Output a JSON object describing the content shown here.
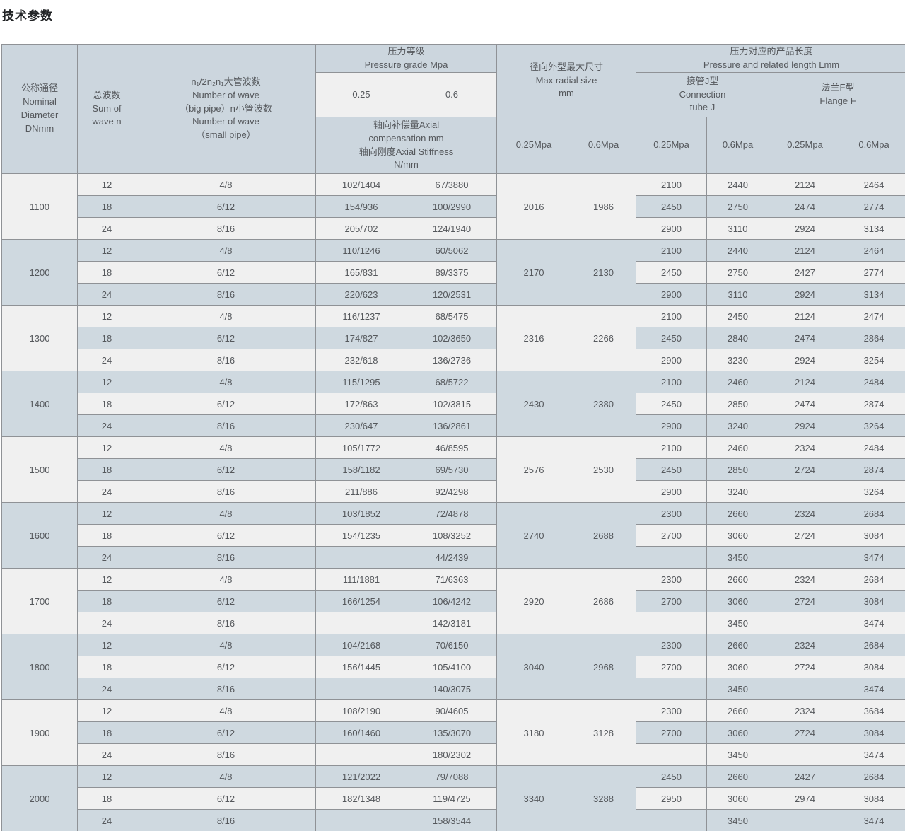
{
  "title": "技术参数",
  "table": {
    "header": {
      "nominal_diameter": "公称通径\nNominal\nDiameter\nDNmm",
      "sum_of_wave": "总波数\nSum of\nwave n",
      "wave_number": "n₁/2n₂n₁大管波数\nNumber of wave\n（big pipe）n小管波数\nNumber of wave\n（small pipe）",
      "pressure_grade": "压力等级\nPressure grade Mpa",
      "pressure_025": "0.25",
      "pressure_06": "0.6",
      "axial": "轴向补偿量Axial\ncompensation mm\n轴向刚度Axial Stiffness\nN/mm",
      "max_radial": "径向外型最大尺寸\nMax radial size\nmm",
      "radial_025": "0.25Mpa",
      "radial_06": "0.6Mpa",
      "length": "压力对应的产品长度\nPressure and related length Lmm",
      "connection_j": "接管J型\nConnection\ntube J",
      "flange_f": "法兰F型\nFlange F",
      "j_025": "0.25Mpa",
      "j_06": "0.6Mpa",
      "f_025": "0.25Mpa",
      "f_06": "0.6Mpa"
    },
    "groups": [
      {
        "dn": "1100",
        "radial_025": "2016",
        "radial_06": "1986",
        "rows": [
          {
            "waves": "12",
            "pipe_waves": "4/8",
            "comp_025": "102/1404",
            "comp_06": "67/3880",
            "j_025": "2100",
            "j_06": "2440",
            "f_025": "2124",
            "f_06": "2464"
          },
          {
            "waves": "18",
            "pipe_waves": "6/12",
            "comp_025": "154/936",
            "comp_06": "100/2990",
            "j_025": "2450",
            "j_06": "2750",
            "f_025": "2474",
            "f_06": "2774"
          },
          {
            "waves": "24",
            "pipe_waves": "8/16",
            "comp_025": "205/702",
            "comp_06": "124/1940",
            "j_025": "2900",
            "j_06": "3110",
            "f_025": "2924",
            "f_06": "3134"
          }
        ]
      },
      {
        "dn": "1200",
        "radial_025": "2170",
        "radial_06": "2130",
        "rows": [
          {
            "waves": "12",
            "pipe_waves": "4/8",
            "comp_025": "110/1246",
            "comp_06": "60/5062",
            "j_025": "2100",
            "j_06": "2440",
            "f_025": "2124",
            "f_06": "2464"
          },
          {
            "waves": "18",
            "pipe_waves": "6/12",
            "comp_025": "165/831",
            "comp_06": "89/3375",
            "j_025": "2450",
            "j_06": "2750",
            "f_025": "2427",
            "f_06": "2774"
          },
          {
            "waves": "24",
            "pipe_waves": "8/16",
            "comp_025": "220/623",
            "comp_06": "120/2531",
            "j_025": "2900",
            "j_06": "3110",
            "f_025": "2924",
            "f_06": "3134"
          }
        ]
      },
      {
        "dn": "1300",
        "radial_025": "2316",
        "radial_06": "2266",
        "rows": [
          {
            "waves": "12",
            "pipe_waves": "4/8",
            "comp_025": "116/1237",
            "comp_06": "68/5475",
            "j_025": "2100",
            "j_06": "2450",
            "f_025": "2124",
            "f_06": "2474"
          },
          {
            "waves": "18",
            "pipe_waves": "6/12",
            "comp_025": "174/827",
            "comp_06": "102/3650",
            "j_025": "2450",
            "j_06": "2840",
            "f_025": "2474",
            "f_06": "2864"
          },
          {
            "waves": "24",
            "pipe_waves": "8/16",
            "comp_025": "232/618",
            "comp_06": "136/2736",
            "j_025": "2900",
            "j_06": "3230",
            "f_025": "2924",
            "f_06": "3254"
          }
        ]
      },
      {
        "dn": "1400",
        "radial_025": "2430",
        "radial_06": "2380",
        "rows": [
          {
            "waves": "12",
            "pipe_waves": "4/8",
            "comp_025": "115/1295",
            "comp_06": "68/5722",
            "j_025": "2100",
            "j_06": "2460",
            "f_025": "2124",
            "f_06": "2484"
          },
          {
            "waves": "18",
            "pipe_waves": "6/12",
            "comp_025": "172/863",
            "comp_06": "102/3815",
            "j_025": "2450",
            "j_06": "2850",
            "f_025": "2474",
            "f_06": "2874"
          },
          {
            "waves": "24",
            "pipe_waves": "8/16",
            "comp_025": "230/647",
            "comp_06": "136/2861",
            "j_025": "2900",
            "j_06": "3240",
            "f_025": "2924",
            "f_06": "3264"
          }
        ]
      },
      {
        "dn": "1500",
        "radial_025": "2576",
        "radial_06": "2530",
        "rows": [
          {
            "waves": "12",
            "pipe_waves": "4/8",
            "comp_025": "105/1772",
            "comp_06": "46/8595",
            "j_025": "2100",
            "j_06": "2460",
            "f_025": "2324",
            "f_06": "2484"
          },
          {
            "waves": "18",
            "pipe_waves": "6/12",
            "comp_025": "158/1182",
            "comp_06": "69/5730",
            "j_025": "2450",
            "j_06": "2850",
            "f_025": "2724",
            "f_06": "2874"
          },
          {
            "waves": "24",
            "pipe_waves": "8/16",
            "comp_025": "211/886",
            "comp_06": "92/4298",
            "j_025": "2900",
            "j_06": "3240",
            "f_025": "",
            "f_06": "3264"
          }
        ]
      },
      {
        "dn": "1600",
        "radial_025": "2740",
        "radial_06": "2688",
        "rows": [
          {
            "waves": "12",
            "pipe_waves": "4/8",
            "comp_025": "103/1852",
            "comp_06": "72/4878",
            "j_025": "2300",
            "j_06": "2660",
            "f_025": "2324",
            "f_06": "2684"
          },
          {
            "waves": "18",
            "pipe_waves": "6/12",
            "comp_025": "154/1235",
            "comp_06": "108/3252",
            "j_025": "2700",
            "j_06": "3060",
            "f_025": "2724",
            "f_06": "3084"
          },
          {
            "waves": "24",
            "pipe_waves": "8/16",
            "comp_025": "",
            "comp_06": "44/2439",
            "j_025": "",
            "j_06": "3450",
            "f_025": "",
            "f_06": "3474"
          }
        ]
      },
      {
        "dn": "1700",
        "radial_025": "2920",
        "radial_06": "2686",
        "rows": [
          {
            "waves": "12",
            "pipe_waves": "4/8",
            "comp_025": "111/1881",
            "comp_06": "71/6363",
            "j_025": "2300",
            "j_06": "2660",
            "f_025": "2324",
            "f_06": "2684"
          },
          {
            "waves": "18",
            "pipe_waves": "6/12",
            "comp_025": "166/1254",
            "comp_06": "106/4242",
            "j_025": "2700",
            "j_06": "3060",
            "f_025": "2724",
            "f_06": "3084"
          },
          {
            "waves": "24",
            "pipe_waves": "8/16",
            "comp_025": "",
            "comp_06": "142/3181",
            "j_025": "",
            "j_06": "3450",
            "f_025": "",
            "f_06": "3474"
          }
        ]
      },
      {
        "dn": "1800",
        "radial_025": "3040",
        "radial_06": "2968",
        "rows": [
          {
            "waves": "12",
            "pipe_waves": "4/8",
            "comp_025": "104/2168",
            "comp_06": "70/6150",
            "j_025": "2300",
            "j_06": "2660",
            "f_025": "2324",
            "f_06": "2684"
          },
          {
            "waves": "18",
            "pipe_waves": "6/12",
            "comp_025": "156/1445",
            "comp_06": "105/4100",
            "j_025": "2700",
            "j_06": "3060",
            "f_025": "2724",
            "f_06": "3084"
          },
          {
            "waves": "24",
            "pipe_waves": "8/16",
            "comp_025": "",
            "comp_06": "140/3075",
            "j_025": "",
            "j_06": "3450",
            "f_025": "",
            "f_06": "3474"
          }
        ]
      },
      {
        "dn": "1900",
        "radial_025": "3180",
        "radial_06": "3128",
        "rows": [
          {
            "waves": "12",
            "pipe_waves": "4/8",
            "comp_025": "108/2190",
            "comp_06": "90/4605",
            "j_025": "2300",
            "j_06": "2660",
            "f_025": "2324",
            "f_06": "3684"
          },
          {
            "waves": "18",
            "pipe_waves": "6/12",
            "comp_025": "160/1460",
            "comp_06": "135/3070",
            "j_025": "2700",
            "j_06": "3060",
            "f_025": "2724",
            "f_06": "3084"
          },
          {
            "waves": "24",
            "pipe_waves": "8/16",
            "comp_025": "",
            "comp_06": "180/2302",
            "j_025": "",
            "j_06": "3450",
            "f_025": "",
            "f_06": "3474"
          }
        ]
      },
      {
        "dn": "2000",
        "radial_025": "3340",
        "radial_06": "3288",
        "rows": [
          {
            "waves": "12",
            "pipe_waves": "4/8",
            "comp_025": "121/2022",
            "comp_06": "79/7088",
            "j_025": "2450",
            "j_06": "2660",
            "f_025": "2427",
            "f_06": "2684"
          },
          {
            "waves": "18",
            "pipe_waves": "6/12",
            "comp_025": "182/1348",
            "comp_06": "119/4725",
            "j_025": "2950",
            "j_06": "3060",
            "f_025": "2974",
            "f_06": "3084"
          },
          {
            "waves": "24",
            "pipe_waves": "8/16",
            "comp_025": "",
            "comp_06": "158/3544",
            "j_025": "",
            "j_06": "3450",
            "f_025": "",
            "f_06": "3474"
          }
        ]
      }
    ]
  }
}
